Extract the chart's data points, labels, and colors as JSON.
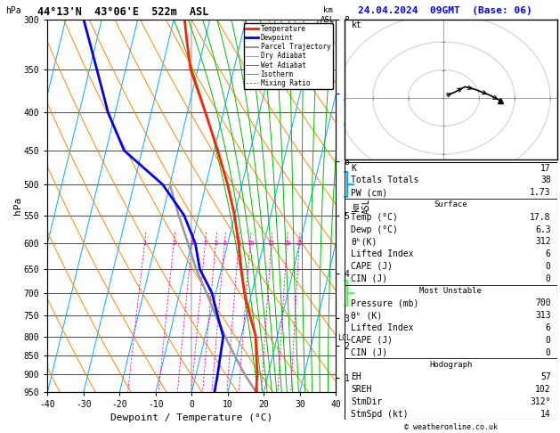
{
  "title_left": "44°13'N  43°06'E  522m  ASL",
  "title_right": "24.04.2024  09GMT  (Base: 06)",
  "xlabel": "Dewpoint / Temperature (°C)",
  "ylabel_left": "hPa",
  "pressure_ticks": [
    300,
    350,
    400,
    450,
    500,
    550,
    600,
    650,
    700,
    750,
    800,
    850,
    900,
    950
  ],
  "isotherm_color": "#00AAFF",
  "dry_adiabat_color": "#FF8800",
  "wet_adiabat_color": "#00BB00",
  "mixing_ratio_color": "#FF00BB",
  "temp_color": "#FF2200",
  "dewpoint_color": "#0000EE",
  "parcel_color": "#999999",
  "legend_entries": [
    "Temperature",
    "Dewpoint",
    "Parcel Trajectory",
    "Dry Adiabat",
    "Wet Adiabat",
    "Isotherm",
    "Mixing Ratio"
  ],
  "legend_colors": [
    "#FF2200",
    "#0000EE",
    "#999999",
    "#FF8800",
    "#00BB00",
    "#00AAFF",
    "#FF00BB"
  ],
  "km_ticks": [
    1,
    2,
    3,
    4,
    5,
    6,
    7,
    8
  ],
  "km_pressures": [
    900,
    800,
    720,
    610,
    490,
    400,
    310,
    235
  ],
  "lcl_pressure": 805,
  "table_data": {
    "K": "17",
    "Totals Totals": "38",
    "PW (cm)": "1.73",
    "Temp (C)": "17.8",
    "Dewp (C)": "6.3",
    "theta_e_K_surf": "312",
    "Lifted Index surf": "6",
    "CAPE_surf": "0",
    "CIN_surf": "0",
    "Pressure (mb)": "700",
    "theta_e_K_mu": "313",
    "Lifted Index mu": "6",
    "CAPE_mu": "0",
    "CIN_mu": "0",
    "EH": "57",
    "SREH": "102",
    "StmDir": "312°",
    "StmSpd (kt)": "14"
  },
  "copyright": "© weatheronline.co.uk"
}
